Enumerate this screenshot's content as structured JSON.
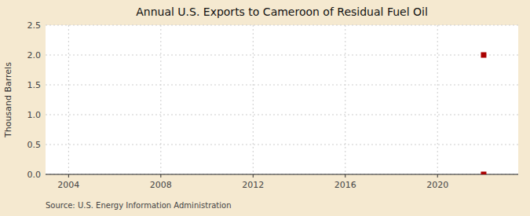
{
  "chart_data": {
    "type": "scatter",
    "title": "Annual U.S. Exports to Cameroon of Residual Fuel Oil",
    "ylabel": "Thousand Barrels",
    "source": "Source: U.S. Energy Information Administration",
    "x": [
      2022,
      2022
    ],
    "values": [
      2.0,
      0.0
    ],
    "color": "#aa0000",
    "marker": "square",
    "xlim": [
      2003.0,
      2023.5
    ],
    "ylim": [
      0.0,
      2.5
    ],
    "xticks": [
      2004,
      2008,
      2012,
      2016,
      2020
    ],
    "yticks": [
      {
        "value": 0.0,
        "label": "0.0"
      },
      0.5,
      {
        "value": 1.0,
        "label": "1.0"
      },
      1.5,
      {
        "value": 2.0,
        "label": "2.0"
      },
      2.5
    ],
    "grid": true
  }
}
